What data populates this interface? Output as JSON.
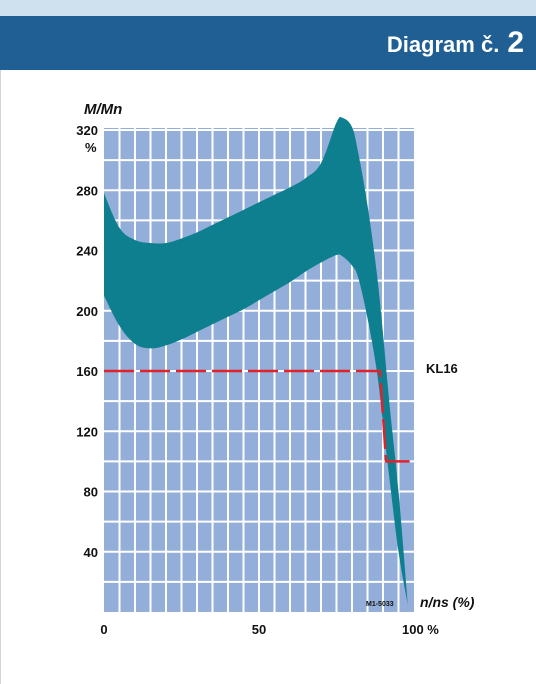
{
  "header": {
    "title_text": "Diagram č.",
    "title_number": "2"
  },
  "colors": {
    "header_bg": "#1f5f93",
    "plot_bg": "#93aed8",
    "grid": "#ffffff",
    "band": "#0e7f8e",
    "kl16_line": "#e0232b"
  },
  "chart_data": {
    "type": "area",
    "ylabel": "M/Mn",
    "xlabel": "n/ns (%)",
    "x_ticks": [
      {
        "v": 0,
        "label": "0"
      },
      {
        "v": 50,
        "label": "50"
      },
      {
        "v": 100,
        "label": "100 %"
      }
    ],
    "y_ticks": [
      {
        "v": 40,
        "label": "40"
      },
      {
        "v": 80,
        "label": "80"
      },
      {
        "v": 120,
        "label": "120"
      },
      {
        "v": 160,
        "label": "160"
      },
      {
        "v": 200,
        "label": "200"
      },
      {
        "v": 240,
        "label": "240"
      },
      {
        "v": 280,
        "label": "280"
      },
      {
        "v": 320,
        "label": "320"
      }
    ],
    "y_unit": "%",
    "xlim": [
      0,
      100
    ],
    "ylim": [
      0,
      320
    ],
    "grid": true,
    "series": [
      {
        "type": "band",
        "x": [
          0,
          5,
          10,
          15,
          20,
          25,
          30,
          35,
          40,
          45,
          50,
          55,
          60,
          65,
          70,
          75,
          77,
          80,
          82,
          85,
          88,
          90,
          92,
          95,
          98
        ],
        "upper": [
          278,
          255,
          247,
          245,
          245,
          248,
          252,
          257,
          262,
          267,
          272,
          277,
          282,
          288,
          298,
          325,
          328,
          322,
          305,
          270,
          225,
          185,
          140,
          80,
          5
        ],
        "lower": [
          210,
          190,
          178,
          175,
          177,
          181,
          186,
          191,
          196,
          201,
          207,
          213,
          219,
          226,
          232,
          237,
          236,
          230,
          222,
          195,
          160,
          125,
          90,
          40,
          5
        ]
      },
      {
        "name": "KL16",
        "type": "dashed-line",
        "x": [
          0,
          89,
          91,
          100
        ],
        "y": [
          160,
          160,
          100,
          100
        ]
      }
    ],
    "annotations": [
      {
        "text": "KL16"
      },
      {
        "text": "M1-5033"
      }
    ]
  }
}
